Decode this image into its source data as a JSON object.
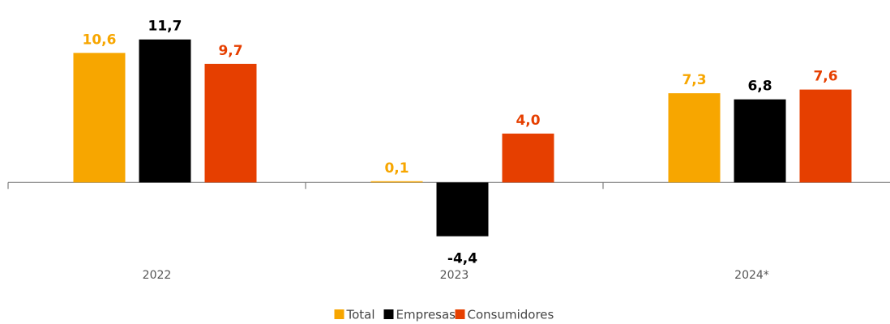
{
  "chart_data": {
    "type": "bar",
    "categories": [
      "2022",
      "2023",
      "2024*"
    ],
    "series": [
      {
        "name": "Total",
        "color": "#f7a600",
        "values": [
          10.6,
          0.1,
          7.3
        ],
        "value_labels": [
          "10,6",
          "0,1",
          "7,3"
        ]
      },
      {
        "name": "Empresas",
        "color": "#000000",
        "values": [
          11.7,
          -4.4,
          6.8
        ],
        "value_labels": [
          "11,7",
          "-4,4",
          "6,8"
        ]
      },
      {
        "name": "Consumidores",
        "color": "#e63f00",
        "values": [
          9.7,
          4.0,
          7.6
        ],
        "value_labels": [
          "9,7",
          "4,0",
          "7,6"
        ]
      }
    ],
    "ylim": [
      -8,
      14
    ],
    "legend": "bottom"
  }
}
